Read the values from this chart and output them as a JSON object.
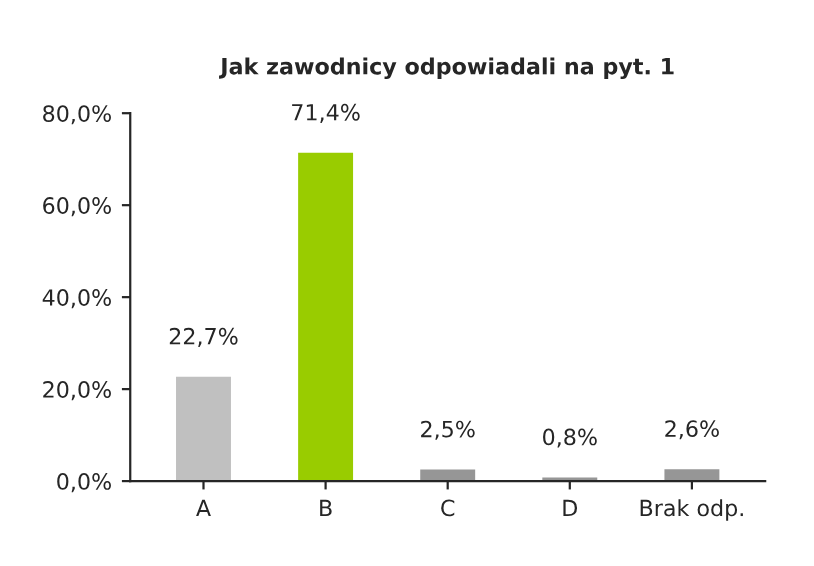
{
  "chart_data": {
    "type": "bar",
    "title": "Jak zawodnicy odpowiadali na pyt. 1",
    "categories": [
      "A",
      "B",
      "C",
      "D",
      "Brak odp."
    ],
    "values": [
      22.7,
      71.4,
      2.5,
      0.8,
      2.6
    ],
    "colors": [
      "#c0c0c0",
      "#99cc00",
      "#969696",
      "#969696",
      "#969696"
    ],
    "value_labels": [
      "22,7%",
      "71,4%",
      "2,5%",
      "0,8%",
      "2,6%"
    ],
    "ylim": [
      0,
      80
    ],
    "yticks": [
      {
        "value": 0,
        "label": "0,0%"
      },
      {
        "value": 20,
        "label": "20,0%"
      },
      {
        "value": 40,
        "label": "40,0%"
      },
      {
        "value": 60,
        "label": "60,0%"
      },
      {
        "value": 80,
        "label": "80,0%"
      }
    ],
    "grid": false,
    "legend": false
  }
}
